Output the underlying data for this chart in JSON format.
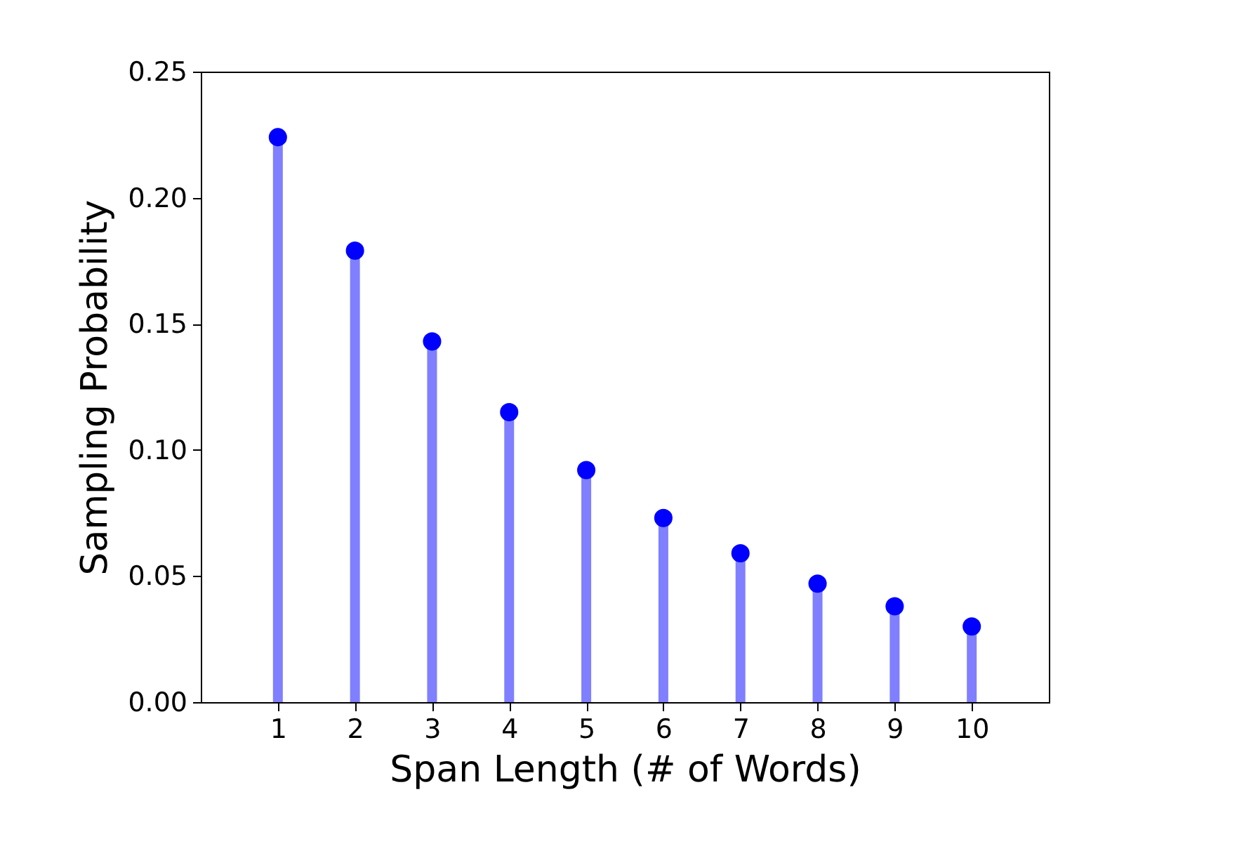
{
  "chart_data": {
    "type": "lollipop",
    "xlabel": "Span Length (# of Words)",
    "ylabel": "Sampling Probability",
    "x": [
      1,
      2,
      3,
      4,
      5,
      6,
      7,
      8,
      9,
      10
    ],
    "series": [
      {
        "color": "#0000ff",
        "values": [
          0.224,
          0.179,
          0.143,
          0.115,
          0.092,
          0.073,
          0.059,
          0.047,
          0.038,
          0.03
        ]
      }
    ],
    "xlim": [
      0,
      11
    ],
    "xticks": [
      1,
      2,
      3,
      4,
      5,
      6,
      7,
      8,
      9,
      10
    ],
    "ylim": [
      0,
      0.25
    ],
    "yticks": [
      {
        "value": 0,
        "label": "0.00"
      },
      {
        "value": 0.05,
        "label": "0.05"
      },
      {
        "value": 0.1,
        "label": "0.10"
      },
      {
        "value": 0.15,
        "label": "0.15"
      },
      {
        "value": 0.2,
        "label": "0.20"
      },
      {
        "value": 0.25,
        "label": "0.25"
      }
    ],
    "marker": "circle"
  }
}
